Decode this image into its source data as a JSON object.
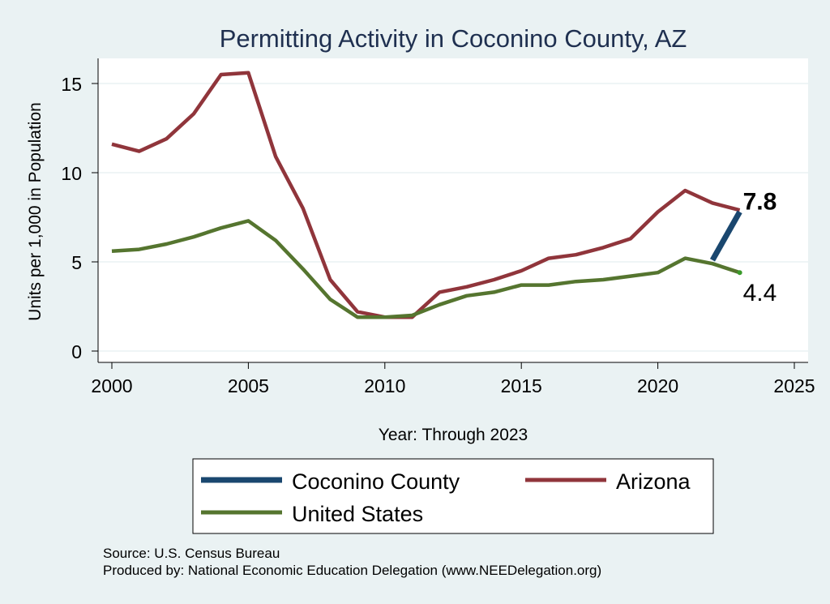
{
  "chart_data": {
    "type": "line",
    "title": "Permitting Activity in Coconino County, AZ",
    "xlabel": "Year: Through 2023",
    "ylabel": "Units per 1,000 in Population",
    "xlim": [
      2000,
      2025
    ],
    "ylim": [
      0,
      16
    ],
    "x_ticks": [
      "2000",
      "2005",
      "2010",
      "2015",
      "2020",
      "2025"
    ],
    "y_ticks": [
      "0",
      "5",
      "10",
      "15"
    ],
    "grid": true,
    "legend_position": "bottom",
    "series": [
      {
        "name": "Coconino County",
        "color": "#1a476f",
        "x": [
          2022,
          2023
        ],
        "y": [
          5.1,
          7.8
        ]
      },
      {
        "name": "Arizona",
        "color": "#90353b",
        "x": [
          2000,
          2001,
          2002,
          2003,
          2004,
          2005,
          2006,
          2007,
          2008,
          2009,
          2010,
          2011,
          2012,
          2013,
          2014,
          2015,
          2016,
          2017,
          2018,
          2019,
          2020,
          2021,
          2022,
          2023
        ],
        "y": [
          11.6,
          11.2,
          11.9,
          13.3,
          15.5,
          15.6,
          10.9,
          8.0,
          4.0,
          2.2,
          1.9,
          1.9,
          3.3,
          3.6,
          4.0,
          4.5,
          5.2,
          5.4,
          5.8,
          6.3,
          7.8,
          9.0,
          8.3,
          7.9
        ]
      },
      {
        "name": "United States",
        "color": "#55752f",
        "x": [
          2000,
          2001,
          2002,
          2003,
          2004,
          2005,
          2006,
          2007,
          2008,
          2009,
          2010,
          2011,
          2012,
          2013,
          2014,
          2015,
          2016,
          2017,
          2018,
          2019,
          2020,
          2021,
          2022,
          2023
        ],
        "y": [
          5.6,
          5.7,
          6.0,
          6.4,
          6.9,
          7.3,
          6.2,
          4.6,
          2.9,
          1.9,
          1.9,
          2.0,
          2.6,
          3.1,
          3.3,
          3.7,
          3.7,
          3.9,
          4.0,
          4.2,
          4.4,
          5.2,
          4.9,
          4.4
        ]
      }
    ],
    "end_labels": [
      {
        "text": "7.8",
        "x": 2023,
        "y": 7.8,
        "bold": true
      },
      {
        "text": "4.4",
        "x": 2023,
        "y": 4.4,
        "bold": false
      }
    ]
  },
  "notes": {
    "source": "Source: U.S. Census Bureau",
    "produced_by": "Produced by: National Economic Education Delegation (www.NEEDelegation.org)"
  }
}
